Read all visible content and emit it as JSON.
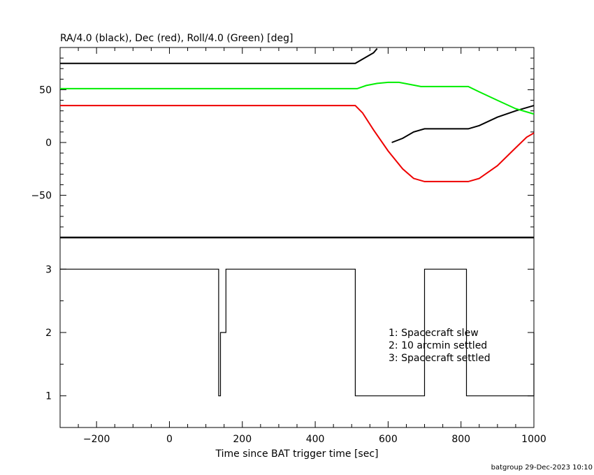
{
  "chart_data": [
    {
      "type": "line",
      "title": "RA/4.0 (black), Dec (red), Roll/4.0 (Green) [deg]",
      "xlim": [
        -300,
        1000
      ],
      "ylim": [
        -90,
        90
      ],
      "ytick_labels": [
        "50",
        "0",
        "−50"
      ],
      "yticks": [
        50,
        0,
        -50
      ],
      "grid": false,
      "series": [
        {
          "color": "#000000",
          "x": [
            -300,
            510,
            530,
            560,
            570
          ],
          "y": [
            75,
            75,
            79,
            85,
            89
          ]
        },
        {
          "color": "#000000",
          "x": [
            610,
            640,
            670,
            700,
            820,
            850,
            900,
            950,
            1000
          ],
          "y": [
            0,
            4,
            10,
            13,
            13,
            16,
            24,
            30,
            35
          ]
        },
        {
          "color": "#00ee00",
          "x": [
            -300,
            515,
            540,
            570,
            600,
            630,
            660,
            690,
            710,
            820,
            850,
            900,
            950,
            1000
          ],
          "y": [
            51,
            51,
            54,
            56,
            57,
            57,
            55,
            53,
            53,
            53,
            48,
            40,
            32,
            27
          ]
        },
        {
          "color": "#ee0000",
          "x": [
            -300,
            510,
            530,
            560,
            600,
            640,
            670,
            700,
            820,
            850,
            900,
            950,
            980,
            1000
          ],
          "y": [
            35,
            35,
            28,
            12,
            -8,
            -25,
            -34,
            -37,
            -37,
            -34,
            -22,
            -5,
            5,
            9
          ]
        }
      ]
    },
    {
      "type": "line",
      "xlabel": "Time since BAT trigger time [sec]",
      "xlim": [
        -300,
        1000
      ],
      "ylim": [
        0.5,
        3.5
      ],
      "xticks": [
        -200,
        0,
        200,
        400,
        600,
        800,
        1000
      ],
      "xtick_labels": [
        "−200",
        "0",
        "200",
        "400",
        "600",
        "800",
        "1000"
      ],
      "yticks": [
        3,
        2,
        1
      ],
      "ytick_labels": [
        "3",
        "2",
        "1"
      ],
      "grid": false,
      "series": [
        {
          "color": "#000000",
          "step": true,
          "x": [
            -300,
            135,
            140,
            155,
            510,
            700,
            710,
            815,
            1000
          ],
          "y": [
            3,
            1,
            2,
            3,
            1,
            3,
            3,
            1,
            2
          ]
        }
      ],
      "annotations": [
        "1: Spacecraft slew",
        "2: 10 arcmin settled",
        "3: Spacecraft settled"
      ]
    }
  ],
  "footer": "batgroup 29-Dec-2023 10:10"
}
